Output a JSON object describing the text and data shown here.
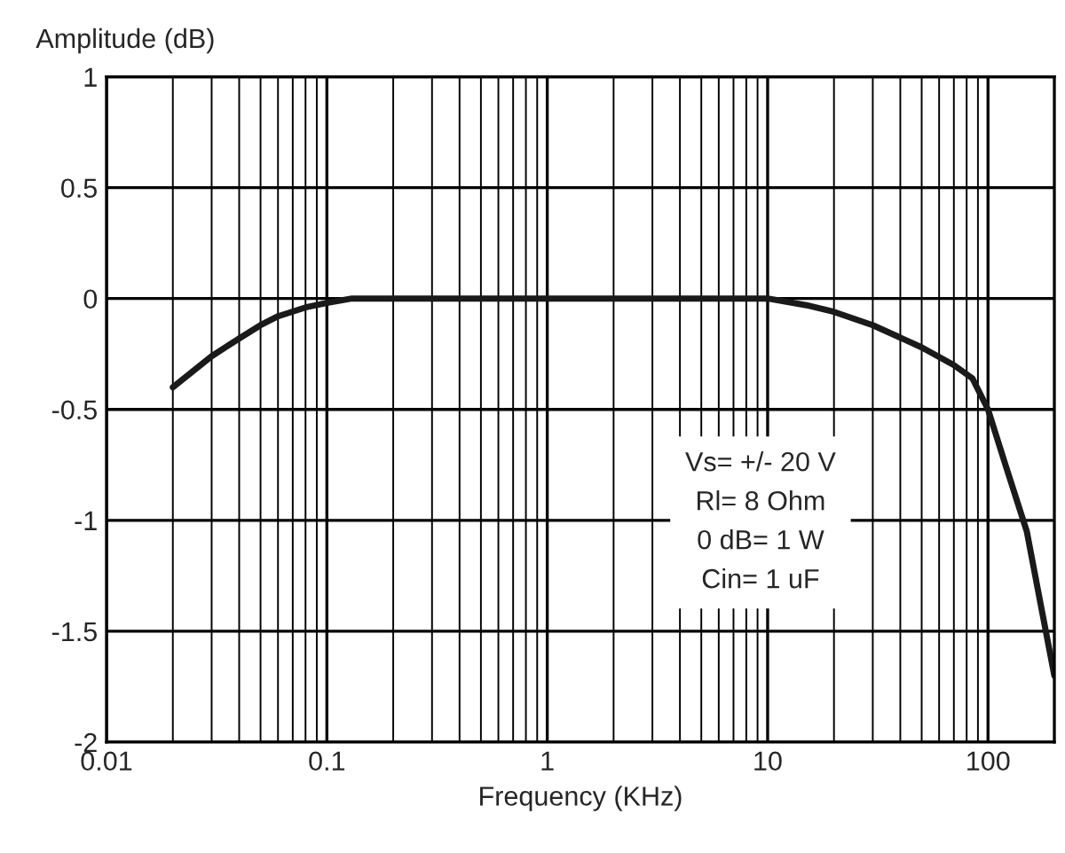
{
  "chart_data": {
    "type": "line",
    "xlabel": "Frequency (KHz)",
    "ylabel": "Amplitude (dB)",
    "log": "x",
    "xlim": [
      0.01,
      200
    ],
    "xticks": [
      0.01,
      0.1,
      1,
      10,
      100
    ],
    "ylim": [
      -2,
      1
    ],
    "yticks": [
      -2,
      -1.5,
      -1,
      -0.5,
      0,
      0.5,
      1
    ],
    "grid": true,
    "marker": "none",
    "line_style": "solid",
    "series": [
      {
        "color": "#1a1a1a",
        "x": [
          0.02,
          0.03,
          0.04,
          0.05,
          0.06,
          0.08,
          0.1,
          0.13,
          1,
          10,
          15,
          20,
          30,
          50,
          70,
          85,
          100,
          120,
          150,
          175,
          200
        ],
        "values": [
          -0.4,
          -0.26,
          -0.18,
          -0.12,
          -0.08,
          -0.04,
          -0.02,
          0,
          0,
          0,
          -0.03,
          -0.06,
          -0.12,
          -0.22,
          -0.3,
          -0.36,
          -0.5,
          -0.75,
          -1.05,
          -1.4,
          -1.7
        ]
      }
    ],
    "annotations": [
      "Vs= +/- 20 V\nRl= 8 Ohm\n0 dB= 1 W\nCin= 1 uF"
    ]
  }
}
